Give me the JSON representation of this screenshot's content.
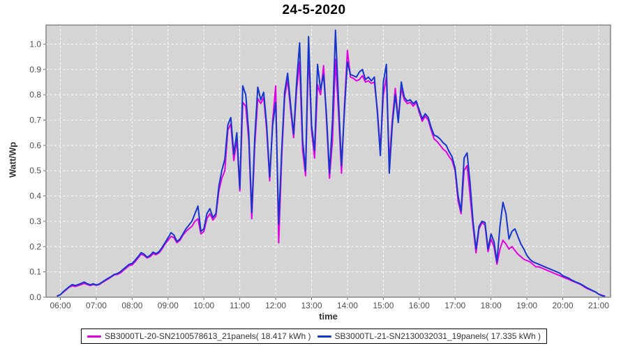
{
  "title": "24-5-2020",
  "chart_data": {
    "type": "line",
    "title": "24-5-2020",
    "xlabel": "time",
    "ylabel": "Watt/Wp",
    "x_ticks": [
      "06:00",
      "07:00",
      "08:00",
      "09:00",
      "10:00",
      "11:00",
      "12:00",
      "13:00",
      "14:00",
      "15:00",
      "16:00",
      "17:00",
      "18:00",
      "19:00",
      "20:00",
      "21:00"
    ],
    "y_ticks": [
      "0.0",
      "0.1",
      "0.2",
      "0.3",
      "0.4",
      "0.5",
      "0.6",
      "0.7",
      "0.8",
      "0.9",
      "1.0"
    ],
    "ylim": [
      0.0,
      1.075
    ],
    "grid": "white dashed on light-gray plot background",
    "legend_position": "bottom",
    "plot_bg": "#d5d5d5",
    "grid_color": "#ffffff",
    "border_color": "#7f7f7f",
    "tick_color": "#4d4d4d",
    "series": [
      {
        "name": "SB3000TL-20-SN2100578613_21panels( 18.417 kWh )",
        "energy_kwh": "18.417",
        "color": "#e100e1",
        "t0": 5.9167,
        "dt_minutes": 5,
        "values": [
          0.005,
          0.01,
          0.02,
          0.03,
          0.04,
          0.045,
          0.042,
          0.046,
          0.05,
          0.055,
          0.05,
          0.046,
          0.05,
          0.047,
          0.05,
          0.058,
          0.065,
          0.072,
          0.08,
          0.088,
          0.09,
          0.095,
          0.105,
          0.115,
          0.125,
          0.128,
          0.14,
          0.155,
          0.17,
          0.165,
          0.155,
          0.16,
          0.172,
          0.168,
          0.175,
          0.19,
          0.21,
          0.225,
          0.24,
          0.235,
          0.215,
          0.225,
          0.245,
          0.26,
          0.27,
          0.28,
          0.3,
          0.31,
          0.25,
          0.26,
          0.31,
          0.33,
          0.305,
          0.32,
          0.42,
          0.47,
          0.5,
          0.66,
          0.685,
          0.54,
          0.625,
          0.42,
          0.77,
          0.755,
          0.62,
          0.31,
          0.6,
          0.785,
          0.765,
          0.79,
          0.66,
          0.46,
          0.7,
          0.835,
          0.215,
          0.55,
          0.79,
          0.86,
          0.74,
          0.63,
          0.82,
          0.93,
          0.58,
          0.48,
          0.975,
          0.66,
          0.55,
          0.84,
          0.8,
          0.915,
          0.7,
          0.47,
          0.62,
          0.94,
          0.73,
          0.49,
          0.76,
          0.975,
          0.87,
          0.865,
          0.855,
          0.86,
          0.875,
          0.85,
          0.855,
          0.845,
          0.85,
          0.74,
          0.58,
          0.8,
          0.87,
          0.53,
          0.7,
          0.825,
          0.7,
          0.825,
          0.78,
          0.765,
          0.77,
          0.755,
          0.77,
          0.73,
          0.695,
          0.715,
          0.7,
          0.66,
          0.625,
          0.615,
          0.6,
          0.585,
          0.575,
          0.555,
          0.54,
          0.5,
          0.38,
          0.33,
          0.5,
          0.52,
          0.4,
          0.28,
          0.175,
          0.27,
          0.295,
          0.285,
          0.18,
          0.23,
          0.2,
          0.13,
          0.19,
          0.225,
          0.21,
          0.19,
          0.2,
          0.185,
          0.17,
          0.16,
          0.15,
          0.145,
          0.14,
          0.13,
          0.12,
          0.12,
          0.115,
          0.11,
          0.105,
          0.1,
          0.095,
          0.09,
          0.085,
          0.08,
          0.075,
          0.07,
          0.065,
          0.06,
          0.055,
          0.05,
          0.042,
          0.035,
          0.03,
          0.025,
          0.02,
          0.012,
          0.008,
          0.004
        ]
      },
      {
        "name": "SB3000TL-21-SN2130032031_19panels( 17.335 kWh )",
        "energy_kwh": "17.335",
        "color": "#1535cc",
        "t0": 5.9167,
        "dt_minutes": 5,
        "values": [
          0.005,
          0.01,
          0.022,
          0.032,
          0.042,
          0.05,
          0.046,
          0.05,
          0.055,
          0.06,
          0.053,
          0.049,
          0.053,
          0.048,
          0.052,
          0.06,
          0.068,
          0.075,
          0.082,
          0.09,
          0.093,
          0.1,
          0.11,
          0.12,
          0.13,
          0.133,
          0.146,
          0.16,
          0.176,
          0.17,
          0.158,
          0.165,
          0.178,
          0.172,
          0.18,
          0.196,
          0.215,
          0.235,
          0.255,
          0.245,
          0.22,
          0.23,
          0.25,
          0.27,
          0.285,
          0.3,
          0.33,
          0.36,
          0.26,
          0.27,
          0.33,
          0.35,
          0.315,
          0.33,
          0.44,
          0.5,
          0.545,
          0.68,
          0.71,
          0.565,
          0.65,
          0.43,
          0.835,
          0.8,
          0.65,
          0.335,
          0.63,
          0.83,
          0.78,
          0.81,
          0.68,
          0.475,
          0.68,
          0.77,
          0.29,
          0.58,
          0.81,
          0.885,
          0.76,
          0.645,
          0.85,
          1.005,
          0.62,
          0.5,
          1.03,
          0.68,
          0.58,
          0.92,
          0.82,
          0.88,
          0.72,
          0.49,
          0.7,
          1.055,
          0.78,
          0.52,
          0.74,
          0.93,
          0.88,
          0.875,
          0.87,
          0.89,
          0.9,
          0.86,
          0.87,
          0.855,
          0.87,
          0.73,
          0.56,
          0.85,
          0.92,
          0.49,
          0.68,
          0.8,
          0.69,
          0.85,
          0.79,
          0.775,
          0.78,
          0.765,
          0.775,
          0.74,
          0.705,
          0.725,
          0.71,
          0.67,
          0.64,
          0.635,
          0.625,
          0.61,
          0.6,
          0.575,
          0.555,
          0.51,
          0.4,
          0.34,
          0.55,
          0.57,
          0.45,
          0.3,
          0.19,
          0.28,
          0.3,
          0.295,
          0.19,
          0.25,
          0.22,
          0.14,
          0.28,
          0.375,
          0.33,
          0.23,
          0.26,
          0.27,
          0.24,
          0.21,
          0.19,
          0.165,
          0.15,
          0.14,
          0.135,
          0.13,
          0.125,
          0.12,
          0.115,
          0.11,
          0.105,
          0.1,
          0.095,
          0.085,
          0.08,
          0.075,
          0.068,
          0.062,
          0.057,
          0.052,
          0.045,
          0.038,
          0.032,
          0.026,
          0.02,
          0.012,
          0.006,
          0.004
        ]
      }
    ]
  }
}
